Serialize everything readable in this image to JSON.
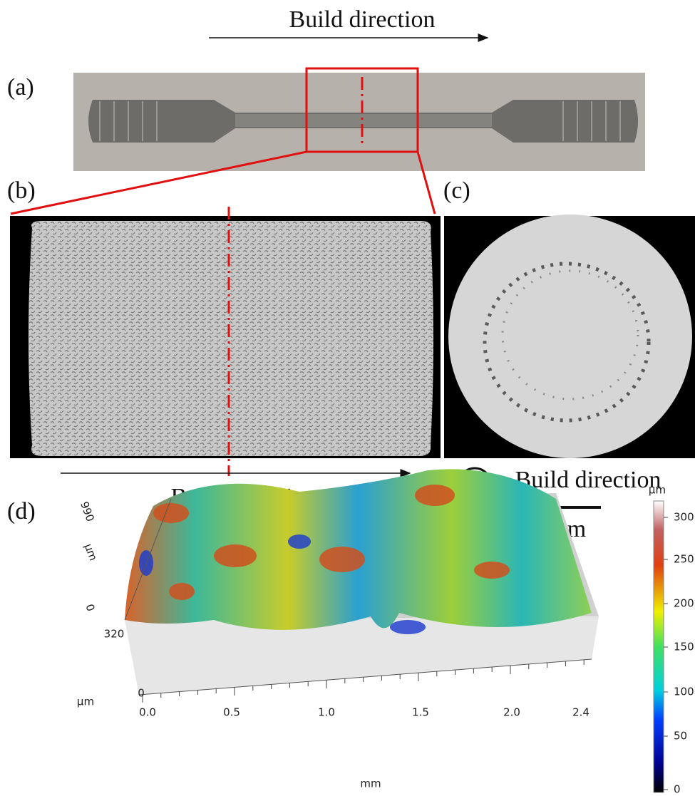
{
  "header": {
    "caption": "Build direction"
  },
  "panels": {
    "a": {
      "label": "(a)"
    },
    "b": {
      "label": "(b)",
      "caption": "Build direction"
    },
    "c": {
      "label": "(c)",
      "caption": "Build direction",
      "scale_bar": "3 mm"
    },
    "d": {
      "label": "(d)",
      "y_axis": {
        "ticks": [
          "990",
          "0"
        ],
        "unit": "μm"
      },
      "z_axis": {
        "ticks": [
          "320",
          "0"
        ],
        "unit": "μm"
      },
      "x_axis": {
        "ticks": [
          "0.0",
          "0.5",
          "1.0",
          "1.5",
          "2.0",
          "2.4"
        ],
        "unit": "mm"
      },
      "colorbar": {
        "unit": "μm",
        "ticks": [
          "300",
          "250",
          "200",
          "150",
          "100",
          "50",
          "0"
        ]
      }
    }
  }
}
